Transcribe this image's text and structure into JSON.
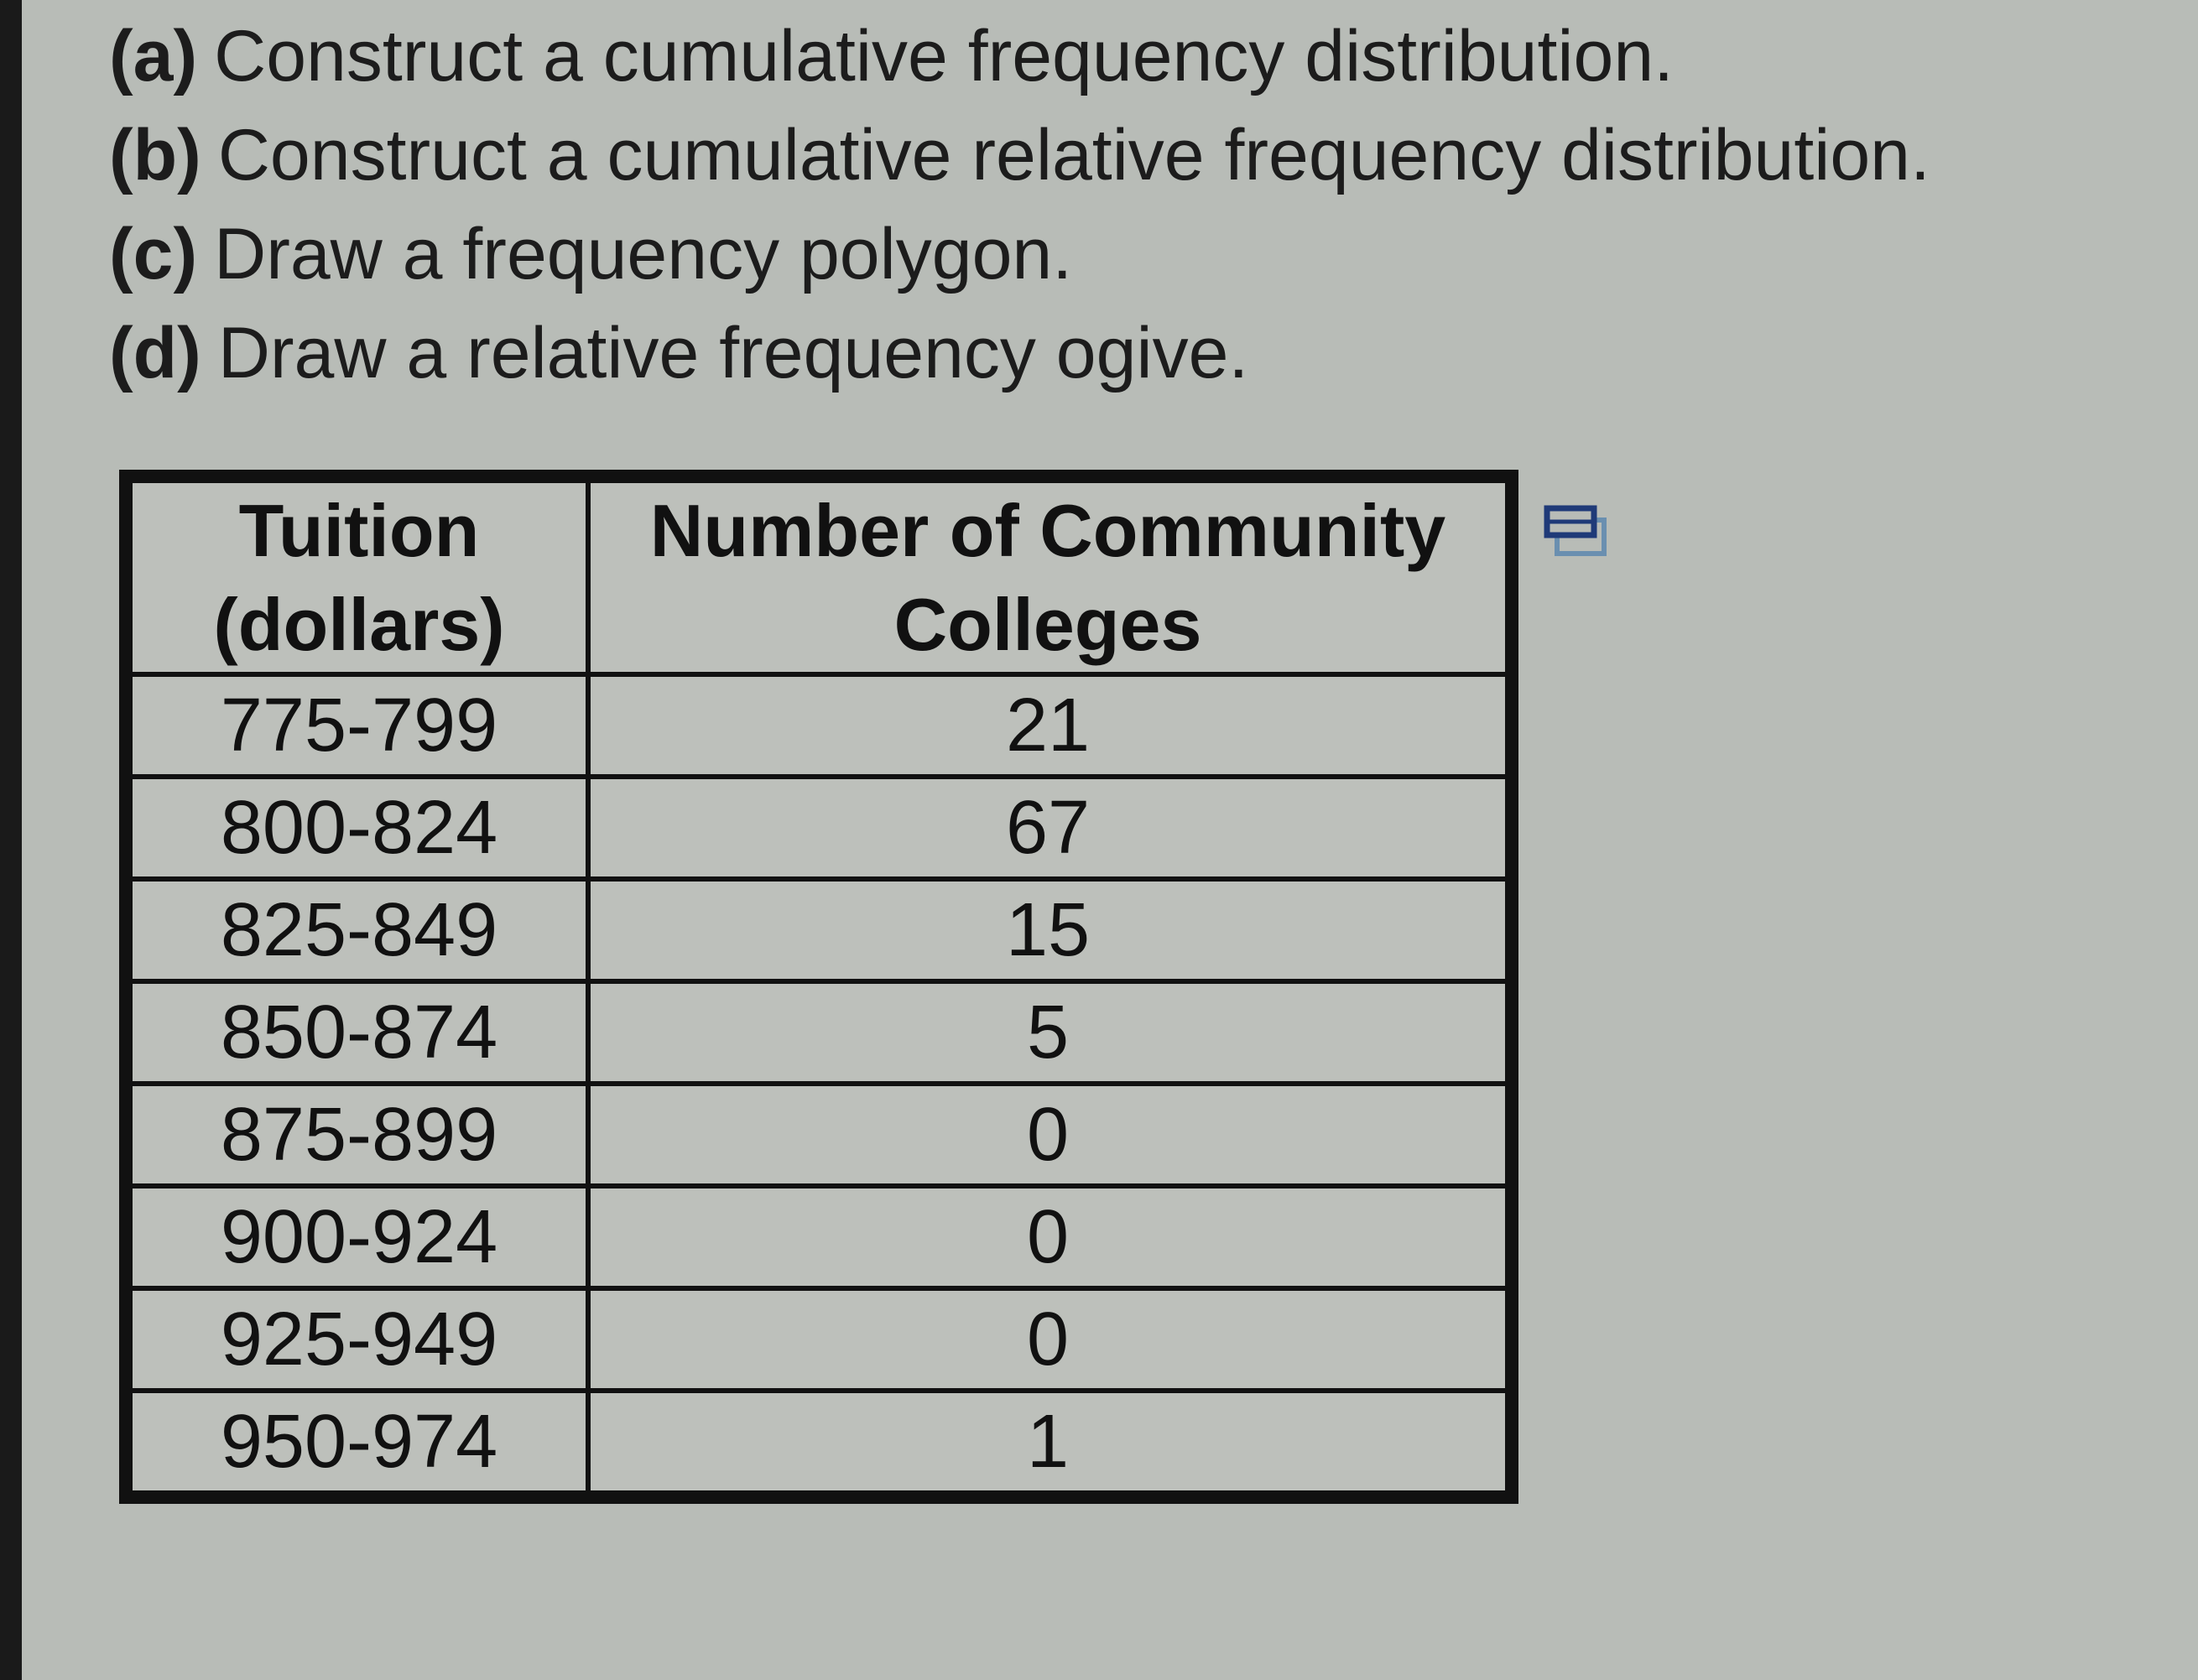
{
  "questions": [
    {
      "label": "(a)",
      "text": "Construct a cumulative frequency distribution."
    },
    {
      "label": "(b)",
      "text": "Construct a cumulative relative frequency distribution."
    },
    {
      "label": "(c)",
      "text": "Draw a frequency polygon."
    },
    {
      "label": "(d)",
      "text": "Draw a relative frequency ogive."
    }
  ],
  "table": {
    "headers": [
      "Tuition (dollars)",
      "Number of Community Colleges"
    ],
    "rows": [
      [
        "775-799",
        21
      ],
      [
        "800-824",
        67
      ],
      [
        "825-849",
        15
      ],
      [
        "850-874",
        5
      ],
      [
        "875-899",
        0
      ],
      [
        "900-924",
        0
      ],
      [
        "925-949",
        0
      ],
      [
        "950-974",
        1
      ]
    ]
  }
}
